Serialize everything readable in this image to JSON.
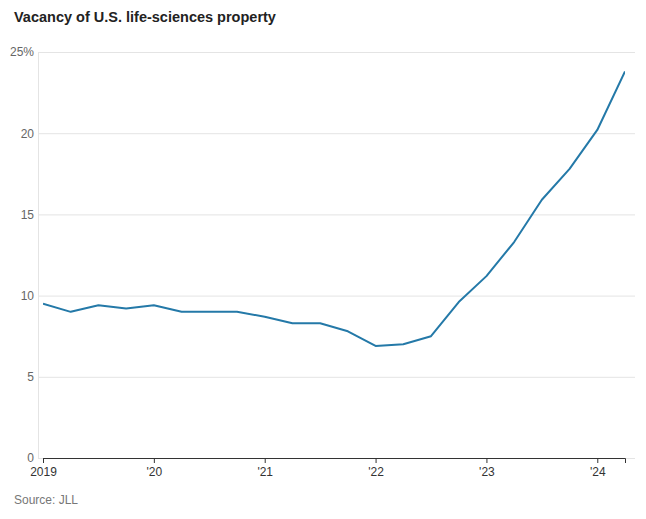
{
  "chart_data": {
    "type": "line",
    "title": "Vacancy of U.S. life-sciences property",
    "source": "Source: JLL",
    "x": [
      2019,
      2019.25,
      2019.5,
      2019.75,
      2020,
      2020.25,
      2020.5,
      2020.75,
      2021,
      2021.25,
      2021.5,
      2021.75,
      2022,
      2022.25,
      2022.5,
      2022.75,
      2023,
      2023.25,
      2023.5,
      2023.75,
      2024,
      2024.25
    ],
    "values": [
      9.5,
      9.0,
      9.4,
      9.2,
      9.4,
      9.0,
      9.0,
      9.0,
      8.7,
      8.3,
      8.3,
      7.8,
      6.9,
      7.0,
      7.5,
      9.6,
      11.2,
      13.3,
      15.9,
      17.8,
      20.2,
      23.8
    ],
    "color": "#2479a8",
    "xlim": [
      2019,
      2024.25
    ],
    "xticks": [
      2019,
      {
        "value": 2020,
        "label": "'20"
      },
      {
        "value": 2021,
        "label": "'21"
      },
      {
        "value": 2022,
        "label": "'22"
      },
      {
        "value": 2023,
        "label": "'23"
      },
      {
        "value": 2024,
        "label": "'24"
      }
    ],
    "ylim": [
      0,
      25
    ],
    "yticks": [
      0,
      5,
      10,
      15,
      20,
      {
        "value": 25,
        "label": "25%"
      }
    ],
    "grid": true
  }
}
